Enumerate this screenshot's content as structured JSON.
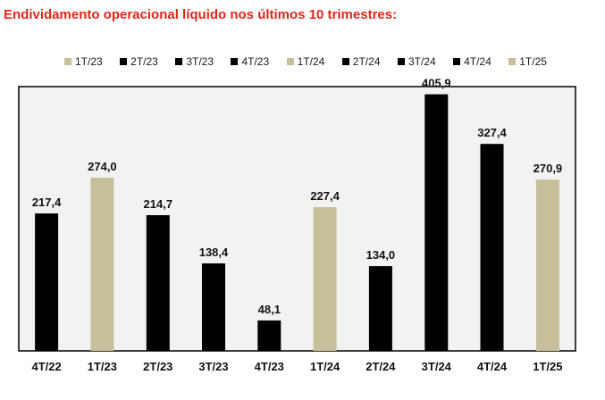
{
  "title": "Endividamento operacional líquido nos últimos 10 trimestres:",
  "legend": [
    {
      "label": "1T/23",
      "color": "#c5bf9a"
    },
    {
      "label": "2T/23",
      "color": "#000000"
    },
    {
      "label": "3T/23",
      "color": "#000000"
    },
    {
      "label": "4T/23",
      "color": "#000000"
    },
    {
      "label": "1T/24",
      "color": "#c5bf9a"
    },
    {
      "label": "2T/24",
      "color": "#000000"
    },
    {
      "label": "3T/24",
      "color": "#000000"
    },
    {
      "label": "4T/24",
      "color": "#000000"
    },
    {
      "label": "1T/25",
      "color": "#c5bf9a"
    }
  ],
  "chart_data": {
    "type": "bar",
    "title": "Endividamento operacional líquido nos últimos 10 trimestres:",
    "categories": [
      "4T/22",
      "1T/23",
      "2T/23",
      "3T/23",
      "4T/23",
      "1T/24",
      "2T/24",
      "3T/24",
      "4T/24",
      "1T/25"
    ],
    "values": [
      217.4,
      274.0,
      214.7,
      138.4,
      48.1,
      227.4,
      134.0,
      405.9,
      327.4,
      270.9
    ],
    "data_labels": [
      "217,4",
      "274,0",
      "214,7",
      "138,4",
      "48,1",
      "227,4",
      "134,0",
      "405,9",
      "327,4",
      "270,9"
    ],
    "bar_colors": [
      "#000000",
      "#c5bf9a",
      "#000000",
      "#000000",
      "#000000",
      "#c5bf9a",
      "#000000",
      "#000000",
      "#000000",
      "#c5bf9a"
    ],
    "ylim": [
      0,
      418
    ],
    "grid": false,
    "legend_position": "top",
    "colors": {
      "black": "#000000",
      "beige": "#c5bf9a",
      "plot_bg": "#f2f2f2",
      "border": "#000000",
      "title": "#e0261b"
    }
  }
}
